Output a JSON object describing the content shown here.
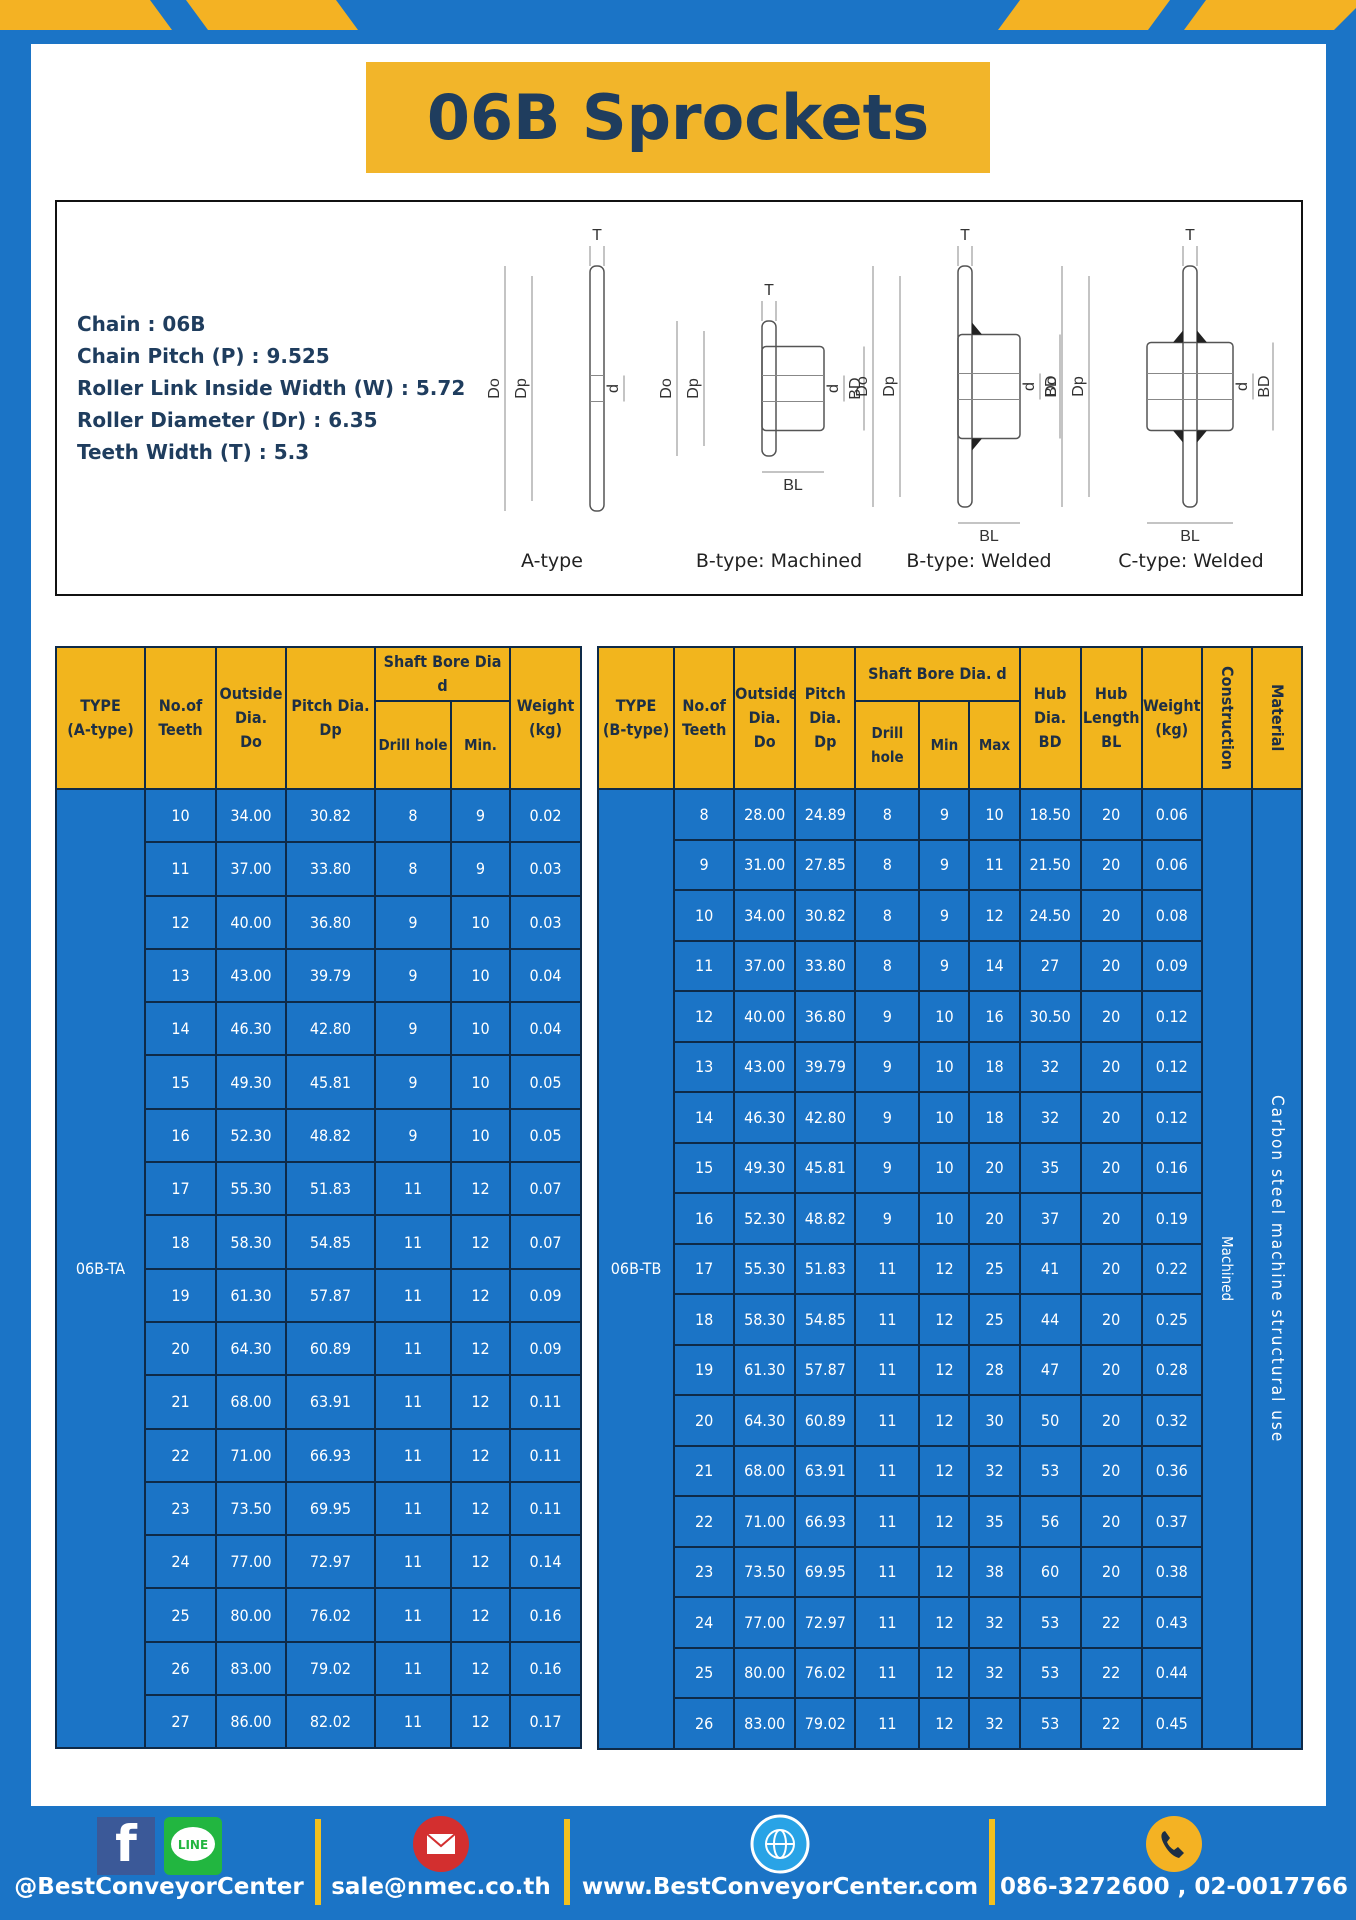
{
  "title": "06B Sprockets",
  "specs": [
    "Chain  : 06B",
    "Chain Pitch (P)  :  9.525",
    "Roller Link Inside Width (W)  :  5.72",
    "Roller Diameter (Dr)  : 6.35",
    "Teeth Width (T)  :  5.3"
  ],
  "diagram": {
    "symbols": {
      "T": "T",
      "Do": "Do",
      "Dp": "Dp",
      "d": "d",
      "BD": "BD",
      "BL": "BL"
    },
    "types": [
      "A-type",
      "B-type: Machined",
      "B-type: Welded",
      "C-type: Welded"
    ]
  },
  "table_a": {
    "headers": [
      [
        "TYPE",
        "(A-type)"
      ],
      [
        "No.of",
        "Teeth"
      ],
      [
        "Outside",
        "Dia.",
        "Do"
      ],
      [
        "Pitch Dia.",
        "Dp"
      ],
      [
        "Shaft Bore Dia d"
      ],
      [
        "Weight",
        "(kg)"
      ]
    ],
    "subheaders": [
      "Drill hole",
      "Min."
    ],
    "type": "06B-TA",
    "rows": [
      [
        "10",
        "34.00",
        "30.82",
        "8",
        "9",
        "0.02"
      ],
      [
        "11",
        "37.00",
        "33.80",
        "8",
        "9",
        "0.03"
      ],
      [
        "12",
        "40.00",
        "36.80",
        "9",
        "10",
        "0.03"
      ],
      [
        "13",
        "43.00",
        "39.79",
        "9",
        "10",
        "0.04"
      ],
      [
        "14",
        "46.30",
        "42.80",
        "9",
        "10",
        "0.04"
      ],
      [
        "15",
        "49.30",
        "45.81",
        "9",
        "10",
        "0.05"
      ],
      [
        "16",
        "52.30",
        "48.82",
        "9",
        "10",
        "0.05"
      ],
      [
        "17",
        "55.30",
        "51.83",
        "11",
        "12",
        "0.07"
      ],
      [
        "18",
        "58.30",
        "54.85",
        "11",
        "12",
        "0.07"
      ],
      [
        "19",
        "61.30",
        "57.87",
        "11",
        "12",
        "0.09"
      ],
      [
        "20",
        "64.30",
        "60.89",
        "11",
        "12",
        "0.09"
      ],
      [
        "21",
        "68.00",
        "63.91",
        "11",
        "12",
        "0.11"
      ],
      [
        "22",
        "71.00",
        "66.93",
        "11",
        "12",
        "0.11"
      ],
      [
        "23",
        "73.50",
        "69.95",
        "11",
        "12",
        "0.11"
      ],
      [
        "24",
        "77.00",
        "72.97",
        "11",
        "12",
        "0.14"
      ],
      [
        "25",
        "80.00",
        "76.02",
        "11",
        "12",
        "0.16"
      ],
      [
        "26",
        "83.00",
        "79.02",
        "11",
        "12",
        "0.16"
      ],
      [
        "27",
        "86.00",
        "82.02",
        "11",
        "12",
        "0.17"
      ]
    ]
  },
  "table_b": {
    "headers": [
      [
        "TYPE",
        "(B-type)"
      ],
      [
        "No.of",
        "Teeth"
      ],
      [
        "Outside",
        "Dia.",
        "Do"
      ],
      [
        "Pitch",
        "Dia.",
        "Dp"
      ],
      [
        "Shaft Bore Dia.  d"
      ],
      [
        "Hub",
        "Dia.",
        "BD"
      ],
      [
        "Hub",
        "Length",
        "BL"
      ],
      [
        "Weight",
        "(kg)"
      ],
      [
        "Construction"
      ],
      [
        "Material"
      ]
    ],
    "subheaders": [
      "Drill hole",
      "Min",
      "Max"
    ],
    "type": "06B-TB",
    "construction": "Machined",
    "material": "Carbon steel machine structural use",
    "rows": [
      [
        "8",
        "28.00",
        "24.89",
        "8",
        "9",
        "10",
        "18.50",
        "20",
        "0.06"
      ],
      [
        "9",
        "31.00",
        "27.85",
        "8",
        "9",
        "11",
        "21.50",
        "20",
        "0.06"
      ],
      [
        "10",
        "34.00",
        "30.82",
        "8",
        "9",
        "12",
        "24.50",
        "20",
        "0.08"
      ],
      [
        "11",
        "37.00",
        "33.80",
        "8",
        "9",
        "14",
        "27",
        "20",
        "0.09"
      ],
      [
        "12",
        "40.00",
        "36.80",
        "9",
        "10",
        "16",
        "30.50",
        "20",
        "0.12"
      ],
      [
        "13",
        "43.00",
        "39.79",
        "9",
        "10",
        "18",
        "32",
        "20",
        "0.12"
      ],
      [
        "14",
        "46.30",
        "42.80",
        "9",
        "10",
        "18",
        "32",
        "20",
        "0.12"
      ],
      [
        "15",
        "49.30",
        "45.81",
        "9",
        "10",
        "20",
        "35",
        "20",
        "0.16"
      ],
      [
        "16",
        "52.30",
        "48.82",
        "9",
        "10",
        "20",
        "37",
        "20",
        "0.19"
      ],
      [
        "17",
        "55.30",
        "51.83",
        "11",
        "12",
        "25",
        "41",
        "20",
        "0.22"
      ],
      [
        "18",
        "58.30",
        "54.85",
        "11",
        "12",
        "25",
        "44",
        "20",
        "0.25"
      ],
      [
        "19",
        "61.30",
        "57.87",
        "11",
        "12",
        "28",
        "47",
        "20",
        "0.28"
      ],
      [
        "20",
        "64.30",
        "60.89",
        "11",
        "12",
        "30",
        "50",
        "20",
        "0.32"
      ],
      [
        "21",
        "68.00",
        "63.91",
        "11",
        "12",
        "32",
        "53",
        "20",
        "0.36"
      ],
      [
        "22",
        "71.00",
        "66.93",
        "11",
        "12",
        "35",
        "56",
        "20",
        "0.37"
      ],
      [
        "23",
        "73.50",
        "69.95",
        "11",
        "12",
        "38",
        "60",
        "20",
        "0.38"
      ],
      [
        "24",
        "77.00",
        "72.97",
        "11",
        "12",
        "32",
        "53",
        "22",
        "0.43"
      ],
      [
        "25",
        "80.00",
        "76.02",
        "11",
        "12",
        "32",
        "53",
        "22",
        "0.44"
      ],
      [
        "26",
        "83.00",
        "79.02",
        "11",
        "12",
        "32",
        "53",
        "22",
        "0.45"
      ]
    ]
  },
  "footer": {
    "facebook_icon": "f",
    "line_icon": "LINE",
    "handle": "@BestConveyorCenter",
    "email": "sale@nmec.co.th",
    "website": "www.BestConveyorCenter.com",
    "phone": "086-3272600 , 02-0017766"
  }
}
